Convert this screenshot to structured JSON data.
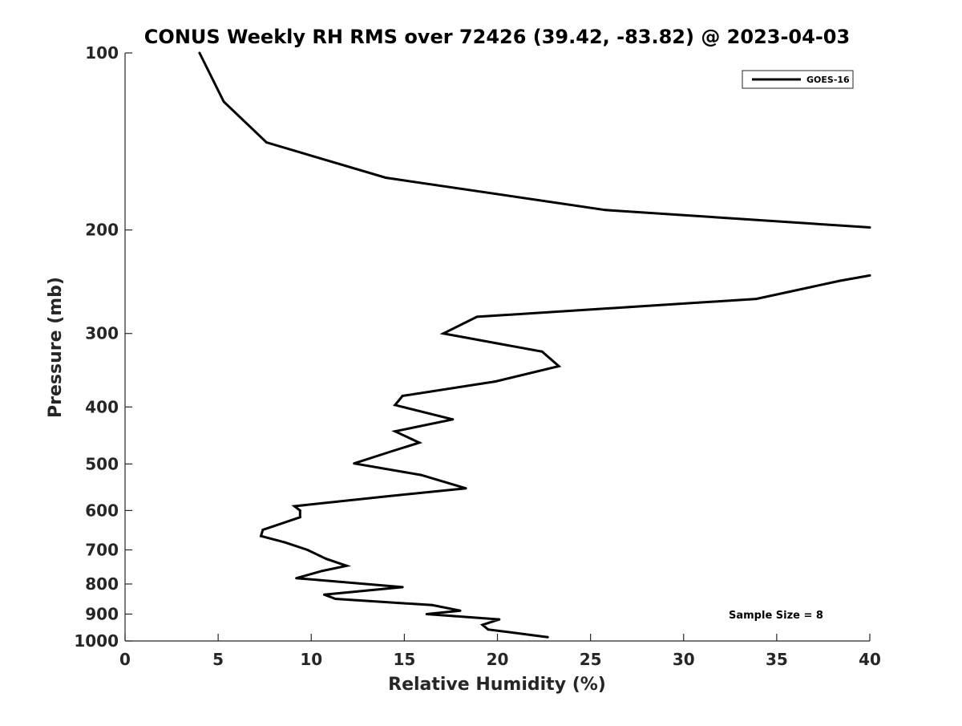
{
  "chart_data": {
    "type": "line",
    "title": "CONUS Weekly RH RMS over 72426 (39.42, -83.82) @ 2023-04-03",
    "xlabel": "Relative Humidity (%)",
    "ylabel": "Pressure (mb)",
    "xlim": [
      0,
      40
    ],
    "ylim": [
      1000,
      100
    ],
    "y_scale": "log",
    "x_ticks": [
      0,
      5,
      10,
      15,
      20,
      25,
      30,
      35,
      40
    ],
    "y_ticks": [
      100,
      200,
      300,
      400,
      500,
      600,
      700,
      800,
      900,
      1000
    ],
    "grid": false,
    "legend_position": "top-right",
    "annotation": "Sample Size = 8",
    "series": [
      {
        "name": "GOES-16",
        "color": "#000000",
        "segments": [
          [
            {
              "x": 4.0,
              "y": 100
            },
            {
              "x": 5.3,
              "y": 121
            },
            {
              "x": 7.6,
              "y": 142
            },
            {
              "x": 14.0,
              "y": 163
            },
            {
              "x": 25.8,
              "y": 185
            },
            {
              "x": 40.0,
              "y": 198
            }
          ],
          [
            {
              "x": 40.0,
              "y": 239
            },
            {
              "x": 38.4,
              "y": 244
            },
            {
              "x": 33.9,
              "y": 262
            },
            {
              "x": 18.9,
              "y": 281
            },
            {
              "x": 17.1,
              "y": 300
            },
            {
              "x": 22.4,
              "y": 322
            },
            {
              "x": 23.3,
              "y": 341
            },
            {
              "x": 19.9,
              "y": 362
            },
            {
              "x": 14.9,
              "y": 383
            },
            {
              "x": 14.5,
              "y": 397
            },
            {
              "x": 17.6,
              "y": 420
            },
            {
              "x": 14.5,
              "y": 440
            },
            {
              "x": 15.8,
              "y": 460
            },
            {
              "x": 14.4,
              "y": 475
            },
            {
              "x": 12.3,
              "y": 499
            },
            {
              "x": 15.9,
              "y": 522
            },
            {
              "x": 18.3,
              "y": 550
            },
            {
              "x": 14.0,
              "y": 568
            },
            {
              "x": 9.1,
              "y": 590
            },
            {
              "x": 9.4,
              "y": 600
            },
            {
              "x": 9.4,
              "y": 616
            },
            {
              "x": 7.4,
              "y": 647
            },
            {
              "x": 7.3,
              "y": 663
            },
            {
              "x": 8.6,
              "y": 680
            },
            {
              "x": 9.8,
              "y": 700
            },
            {
              "x": 10.8,
              "y": 725
            },
            {
              "x": 11.9,
              "y": 745
            },
            {
              "x": 10.6,
              "y": 760
            },
            {
              "x": 9.2,
              "y": 782
            },
            {
              "x": 14.9,
              "y": 810
            },
            {
              "x": 10.7,
              "y": 834
            },
            {
              "x": 11.3,
              "y": 848
            },
            {
              "x": 16.5,
              "y": 869
            },
            {
              "x": 18.0,
              "y": 888
            },
            {
              "x": 16.2,
              "y": 900
            },
            {
              "x": 20.1,
              "y": 919
            },
            {
              "x": 19.2,
              "y": 939
            },
            {
              "x": 19.5,
              "y": 956
            },
            {
              "x": 22.7,
              "y": 985
            }
          ]
        ]
      }
    ]
  }
}
